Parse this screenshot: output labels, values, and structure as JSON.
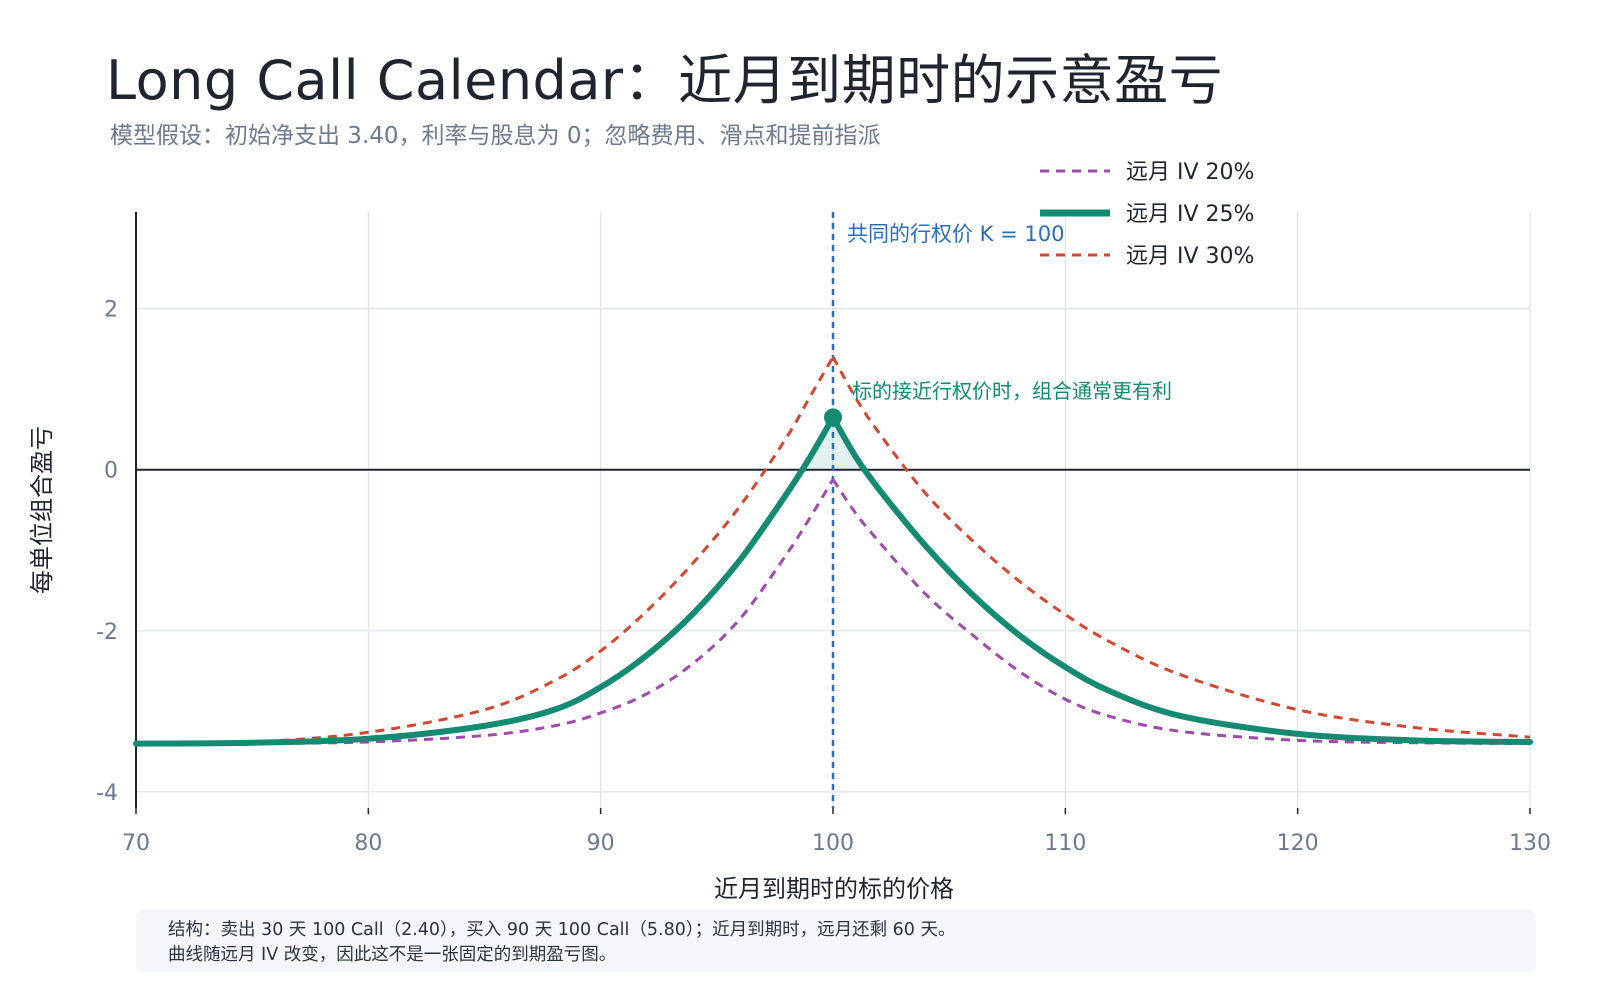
{
  "header": {
    "title": "Long Call Calendar：近月到期时的示意盈亏",
    "subtitle": "模型假设：初始净支出 3.40，利率与股息为 0；忽略费用、滑点和提前指派"
  },
  "note": {
    "line1": "结构：卖出 30 天 100 Call（2.40），买入 90 天 100 Call（5.80）；近月到期时，远月还剩 60 天。",
    "line2": "曲线随远月 IV 改变，因此这不是一张固定的到期盈亏图。"
  },
  "chart_data": {
    "type": "line",
    "xlabel": "近月到期时的标的价格",
    "ylabel": "每单位组合盈亏",
    "xlim": [
      70,
      130
    ],
    "ylim": [
      -4.2,
      3.2
    ],
    "xticks": [
      70,
      80,
      90,
      100,
      110,
      120,
      130
    ],
    "yticks": [
      -4,
      -2,
      0,
      2
    ],
    "x": [
      70,
      75,
      80,
      85,
      88,
      90,
      92,
      94,
      96,
      98,
      99,
      100,
      101,
      102,
      104,
      106,
      108,
      110,
      112,
      115,
      120,
      125,
      130
    ],
    "series": [
      {
        "name": "远月 IV 20%",
        "color": "#a04aad",
        "style": "dashed",
        "values": [
          -3.4,
          -3.4,
          -3.38,
          -3.3,
          -3.18,
          -3.02,
          -2.78,
          -2.4,
          -1.85,
          -1.05,
          -0.6,
          -0.12,
          -0.55,
          -0.9,
          -1.55,
          -2.05,
          -2.5,
          -2.85,
          -3.07,
          -3.25,
          -3.36,
          -3.39,
          -3.4
        ]
      },
      {
        "name": "远月 IV 25%",
        "color": "#138a72",
        "style": "solid",
        "values": [
          -3.4,
          -3.39,
          -3.34,
          -3.18,
          -2.98,
          -2.7,
          -2.3,
          -1.78,
          -1.12,
          -0.3,
          0.15,
          0.65,
          0.15,
          -0.25,
          -0.95,
          -1.55,
          -2.05,
          -2.45,
          -2.76,
          -3.06,
          -3.28,
          -3.36,
          -3.38
        ]
      },
      {
        "name": "远月 IV 30%",
        "color": "#d2472f",
        "style": "dashed",
        "values": [
          -3.4,
          -3.38,
          -3.26,
          -2.98,
          -2.62,
          -2.25,
          -1.75,
          -1.15,
          -0.45,
          0.4,
          0.9,
          1.4,
          0.88,
          0.45,
          -0.3,
          -0.88,
          -1.38,
          -1.8,
          -2.15,
          -2.55,
          -2.98,
          -3.2,
          -3.32
        ]
      }
    ],
    "highlight_point": {
      "x": 100,
      "y": 0.65
    },
    "strike_line": {
      "x": 100,
      "label": "共同的行权价 K = 100",
      "color": "#2a6fb5"
    },
    "annotation": {
      "text": "标的接近行权价时，组合通常更有利",
      "color": "#138a72"
    },
    "grid": true,
    "legend": "top-right"
  }
}
